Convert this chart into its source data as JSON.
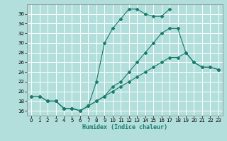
{
  "xlabel": "Humidex (Indice chaleur)",
  "bg_color": "#b2dfdb",
  "grid_color": "#ffffff",
  "line_color": "#1a7a6e",
  "xlim": [
    -0.5,
    23.5
  ],
  "ylim": [
    15,
    38
  ],
  "yticks": [
    16,
    18,
    20,
    22,
    24,
    26,
    28,
    30,
    32,
    34,
    36
  ],
  "xticks": [
    0,
    1,
    2,
    3,
    4,
    5,
    6,
    7,
    8,
    9,
    10,
    11,
    12,
    13,
    14,
    15,
    16,
    17,
    18,
    19,
    20,
    21,
    22,
    23
  ],
  "line1_x": [
    0,
    1,
    2,
    3,
    4,
    5,
    6,
    7,
    8,
    9,
    10,
    11,
    12,
    13,
    14,
    15,
    16,
    17
  ],
  "line1_y": [
    19,
    19,
    18,
    18,
    16.5,
    16.5,
    16,
    17,
    22,
    30,
    33,
    35,
    37,
    37,
    36,
    35.5,
    35.5,
    37
  ],
  "line2_x": [
    2,
    3,
    4,
    5,
    6,
    7,
    8,
    9,
    10,
    11,
    12,
    13,
    14,
    15,
    16,
    17,
    18,
    19,
    20,
    21,
    22,
    23
  ],
  "line2_y": [
    18,
    18,
    16.5,
    16.5,
    16,
    17,
    18,
    19,
    21,
    22,
    24,
    26,
    28,
    30,
    32,
    33,
    33,
    28,
    26,
    25,
    25,
    24.5
  ],
  "line3_x": [
    0,
    1,
    2,
    3,
    4,
    5,
    6,
    7,
    8,
    9,
    10,
    11,
    12,
    13,
    14,
    15,
    16,
    17,
    18,
    19,
    20,
    21,
    22,
    23
  ],
  "line3_y": [
    19,
    19,
    18,
    18,
    16.5,
    16.5,
    16,
    17,
    18,
    19,
    20,
    21,
    22,
    23,
    24,
    25,
    26,
    27,
    27,
    28,
    26,
    25,
    25,
    24.5
  ]
}
